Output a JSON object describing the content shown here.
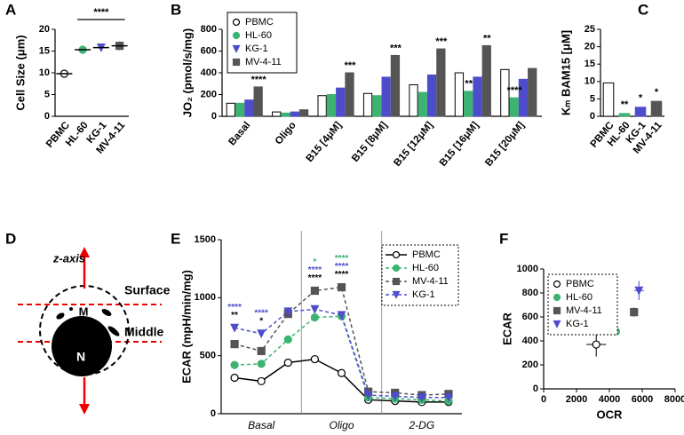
{
  "panel_labels": [
    "A",
    "B",
    "C",
    "D",
    "E",
    "F"
  ],
  "diagram": {
    "axis_label": "z-axis",
    "planes": [
      "Surface",
      "Middle"
    ],
    "organelle": "M",
    "nucleus": "N"
  },
  "chart_data": [
    {
      "type": "dot",
      "ylabel": "Cell Size (μm)",
      "categories": [
        "PBMC",
        "HL-60",
        "KG-1",
        "MV-4-11"
      ],
      "values": [
        9.8,
        15.3,
        15.8,
        16.2
      ],
      "errors": [
        0.6,
        0.3,
        0.4,
        1.0
      ],
      "colors": [
        "#000000",
        "#3cb371",
        "#4d4dcc",
        "#555555"
      ],
      "markers": [
        "circle-open",
        "circle",
        "triangle-down",
        "square"
      ],
      "ylim": [
        0,
        20
      ],
      "yticks": [
        0,
        5,
        10,
        15,
        20
      ],
      "annotations": [
        "****"
      ]
    },
    {
      "type": "bar",
      "ylabel": "JO₂ (pmol/s/mg)",
      "categories": [
        "Basal",
        "Oligo",
        "B15 [4μM]",
        "B15 [8μM]",
        "B15 [12μM]",
        "B15 [16μM]",
        "B15 [20μM]"
      ],
      "series": [
        {
          "name": "PBMC",
          "color": "#ffffff",
          "marker": "circle-open",
          "values": [
            120,
            40,
            190,
            210,
            290,
            400,
            430
          ]
        },
        {
          "name": "HL-60",
          "color": "#3cb371",
          "marker": "circle",
          "values": [
            120,
            30,
            200,
            190,
            220,
            230,
            170
          ]
        },
        {
          "name": "KG-1",
          "color": "#4d4dcc",
          "marker": "triangle-down",
          "values": [
            150,
            40,
            260,
            360,
            380,
            360,
            340
          ]
        },
        {
          "name": "MV-4-11",
          "color": "#555555",
          "marker": "square",
          "values": [
            270,
            60,
            400,
            560,
            620,
            650,
            440
          ]
        }
      ],
      "ylim": [
        0,
        800
      ],
      "yticks": [
        0,
        200,
        400,
        600,
        800
      ],
      "legend": "top-left",
      "annotations": [
        "****",
        "***",
        "***",
        "***",
        "**",
        "**",
        "****"
      ]
    },
    {
      "type": "bar",
      "ylabel": "Kₘ BAM15 [μM]",
      "categories": [
        "PBMC",
        "HL-60",
        "KG-1",
        "MV-4-11"
      ],
      "values": [
        9.6,
        0.8,
        2.6,
        4.3
      ],
      "colors": [
        "#ffffff",
        "#3cb371",
        "#4d4dcc",
        "#555555"
      ],
      "ylim": [
        0,
        25
      ],
      "yticks": [
        0,
        5,
        10,
        15,
        20,
        25
      ],
      "annotations": [
        "**",
        "*",
        "*"
      ]
    },
    {
      "type": "line",
      "ylabel": "ECAR (mpH/min/mg)",
      "categories": [
        null,
        null,
        null,
        null,
        null,
        null,
        null,
        null,
        null
      ],
      "groups": [
        "Basal",
        "Oligo",
        "2-DG"
      ],
      "series": [
        {
          "name": "PBMC",
          "color": "#000000",
          "marker": "circle-open",
          "dash": "none",
          "values": [
            310,
            280,
            440,
            470,
            350,
            120,
            110,
            100,
            100
          ]
        },
        {
          "name": "HL-60",
          "color": "#3cb371",
          "marker": "circle",
          "dash": "4 3",
          "values": [
            420,
            430,
            640,
            830,
            840,
            140,
            130,
            120,
            110
          ]
        },
        {
          "name": "MV-4-11",
          "color": "#555555",
          "marker": "square",
          "dash": "4 3",
          "values": [
            600,
            540,
            860,
            1060,
            1090,
            190,
            180,
            160,
            170
          ]
        },
        {
          "name": "KG-1",
          "color": "#4d4dcc",
          "marker": "triangle-down",
          "dash": "4 3",
          "values": [
            740,
            690,
            880,
            900,
            850,
            160,
            150,
            140,
            140
          ]
        }
      ],
      "ylim": [
        0,
        1500
      ],
      "yticks": [
        0,
        500,
        1000,
        1500
      ],
      "legend": "top-right",
      "annotations": [
        {
          "text": "****",
          "color": "#4d4dcc"
        },
        {
          "text": "**",
          "color": "#000000"
        },
        {
          "text": "****",
          "color": "#4d4dcc"
        },
        {
          "text": "*",
          "color": "#000000"
        },
        {
          "text": "*",
          "color": "#3cb371"
        },
        {
          "text": "****",
          "color": "#4d4dcc"
        },
        {
          "text": "****",
          "color": "#000000"
        },
        {
          "text": "****",
          "color": "#3cb371"
        },
        {
          "text": "****",
          "color": "#4d4dcc"
        },
        {
          "text": "****",
          "color": "#000000"
        }
      ]
    },
    {
      "type": "scatter",
      "xlabel": "OCR",
      "ylabel": "ECAR",
      "series": [
        {
          "name": "PBMC",
          "color": "#000000",
          "marker": "circle-open",
          "x": [
            3200
          ],
          "values": [
            370
          ],
          "xerr": [
            600
          ],
          "yerr": [
            100
          ]
        },
        {
          "name": "HL-60",
          "color": "#3cb371",
          "marker": "circle",
          "x": [
            4400
          ],
          "values": [
            480
          ],
          "xerr": [
            200
          ],
          "yerr": [
            30
          ]
        },
        {
          "name": "MV-4-11",
          "color": "#555555",
          "marker": "square",
          "x": [
            5500
          ],
          "values": [
            640
          ],
          "xerr": [
            250
          ],
          "yerr": [
            40
          ]
        },
        {
          "name": "KG-1",
          "color": "#4d4dcc",
          "marker": "triangle-down",
          "x": [
            5800
          ],
          "values": [
            820
          ],
          "xerr": [
            300
          ],
          "yerr": [
            80
          ]
        }
      ],
      "xlim": [
        0,
        8000
      ],
      "xticks": [
        0,
        2000,
        4000,
        6000,
        8000
      ],
      "ylim": [
        0,
        1000
      ],
      "yticks": [
        0,
        200,
        400,
        600,
        800,
        1000
      ],
      "legend": "top-left"
    }
  ]
}
